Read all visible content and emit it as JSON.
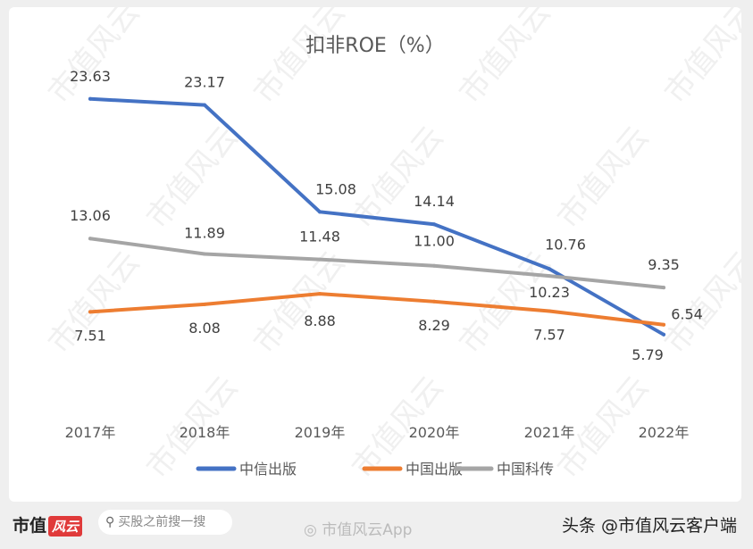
{
  "chart_data": {
    "type": "line",
    "title": "扣非ROE（%）",
    "categories": [
      "2017年",
      "2018年",
      "2019年",
      "2020年",
      "2021年",
      "2022年"
    ],
    "series": [
      {
        "name": "中信出版",
        "color": "#4472C4",
        "values": [
          23.63,
          23.17,
          15.08,
          14.14,
          10.76,
          5.79
        ]
      },
      {
        "name": "中国出版",
        "color": "#ED7D31",
        "values": [
          7.51,
          8.08,
          8.88,
          8.29,
          7.57,
          6.54
        ]
      },
      {
        "name": "中国科传",
        "color": "#A5A5A5",
        "values": [
          13.06,
          11.89,
          11.48,
          11.0,
          10.23,
          9.35
        ]
      }
    ],
    "ylim": [
      0,
      25
    ],
    "grid": false,
    "legend": "bottom"
  },
  "watermark": "市值风云",
  "footer": {
    "logo_text": "市值",
    "logo_badge": "风云",
    "search_placeholder": "买股之前搜一搜",
    "weibo": "市值风云App",
    "toutiao": "头条 @市值风云客户端"
  }
}
